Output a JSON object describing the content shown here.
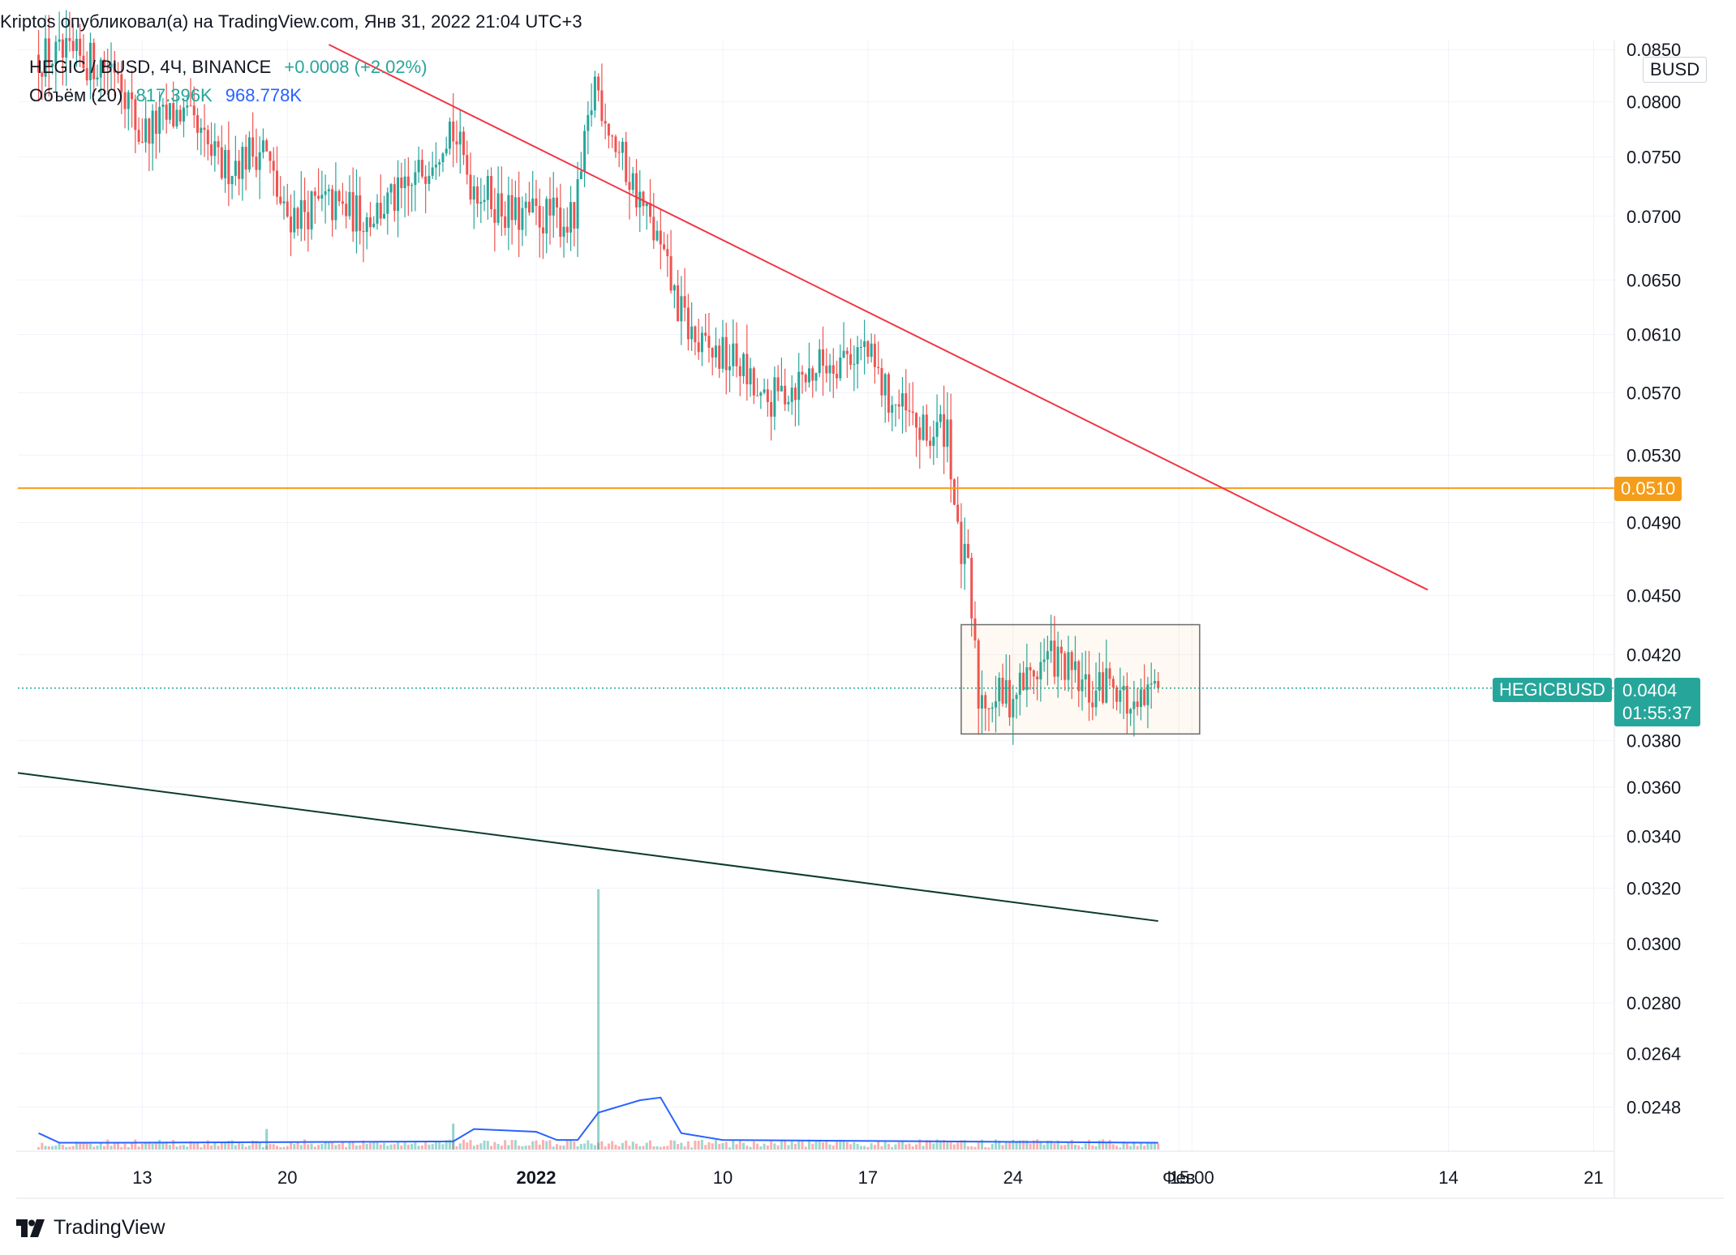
{
  "header": {
    "publish_line": "Kriptos опубликовал(а) на TradingView.com, Янв 31, 2022 21:04 UTC+3"
  },
  "legend": {
    "symbol_line": "HEGIC / BUSD, 4Ч, BINANCE",
    "change": "+0.0008 (+2.02%)",
    "volume_label": "Объём (20)",
    "volume_value": "817.396K",
    "volume_ma": "968.778K"
  },
  "currency_badge": "BUSD",
  "price_axis": {
    "ticks": [
      "0.0850",
      "0.0800",
      "0.0750",
      "0.0700",
      "0.0650",
      "0.0610",
      "0.0570",
      "0.0530",
      "0.0490",
      "0.0450",
      "0.0420",
      "0.0380",
      "0.0360",
      "0.0340",
      "0.0320",
      "0.0300",
      "0.0280",
      "0.0264",
      "0.0248"
    ]
  },
  "time_axis": {
    "ticks": [
      {
        "label": "13",
        "bold": false
      },
      {
        "label": "20",
        "bold": false
      },
      {
        "label": "2022",
        "bold": true
      },
      {
        "label": "10",
        "bold": false
      },
      {
        "label": "17",
        "bold": false
      },
      {
        "label": "24",
        "bold": false
      },
      {
        "label": "Фев",
        "bold": false
      },
      {
        "label": "15:00",
        "bold": false
      },
      {
        "label": "14",
        "bold": false
      },
      {
        "label": "21",
        "bold": false
      }
    ]
  },
  "horizontal_level": {
    "price": 0.051,
    "label": "0.0510",
    "color": "#f59d1a"
  },
  "last_price": {
    "symbol": "HEGICBUSD",
    "price": "0.0404",
    "countdown": "01:55:37",
    "color": "#26a69a"
  },
  "colors": {
    "up": "#26a69a",
    "down": "#ef5350",
    "volume_ma": "#2962ff",
    "trendline_red": "#f23645",
    "trendline_green": "#0b3b2e",
    "grid": "#f0f3fa"
  },
  "branding": {
    "logo_text": "TradingView"
  },
  "chart_data": {
    "type": "candlestick",
    "interval": "4h",
    "symbol": "HEGIC / BUSD",
    "exchange": "BINANCE",
    "y_scale": "log",
    "ylim": [
      0.0236,
      0.0855
    ],
    "x_range": [
      "2021-12-07",
      "2022-02-22"
    ],
    "price_path": [
      [
        "2021-12-08",
        0.0845
      ],
      [
        "2021-12-12",
        0.0835
      ],
      [
        "2021-12-13",
        0.077
      ],
      [
        "2021-12-15",
        0.079
      ],
      [
        "2021-12-17",
        0.074
      ],
      [
        "2021-12-19",
        0.076
      ],
      [
        "2021-12-20",
        0.07
      ],
      [
        "2021-12-22",
        0.071
      ],
      [
        "2021-12-24",
        0.07
      ],
      [
        "2021-12-26",
        0.072
      ],
      [
        "2021-12-28",
        0.078
      ],
      [
        "2021-12-29",
        0.073
      ],
      [
        "2021-12-31",
        0.07
      ],
      [
        "2022-01-02",
        0.07
      ],
      [
        "2022-01-03",
        0.0695
      ],
      [
        "2022-01-04",
        0.082
      ],
      [
        "2022-01-05",
        0.076
      ],
      [
        "2022-01-06",
        0.072
      ],
      [
        "2022-01-07",
        0.068
      ],
      [
        "2022-01-08",
        0.063
      ],
      [
        "2022-01-09",
        0.06
      ],
      [
        "2022-01-11",
        0.059
      ],
      [
        "2022-01-12",
        0.056
      ],
      [
        "2022-01-15",
        0.059
      ],
      [
        "2022-01-17",
        0.06
      ],
      [
        "2022-01-18",
        0.057
      ],
      [
        "2022-01-20",
        0.054
      ],
      [
        "2022-01-21",
        0.055
      ],
      [
        "2022-01-21T12:00",
        0.048
      ],
      [
        "2022-01-22",
        0.046
      ],
      [
        "2022-01-22T12:00",
        0.04
      ],
      [
        "2022-01-24",
        0.04
      ],
      [
        "2022-01-26",
        0.042
      ],
      [
        "2022-01-28",
        0.04
      ],
      [
        "2022-01-29",
        0.041
      ],
      [
        "2022-01-30",
        0.039
      ],
      [
        "2022-01-31",
        0.0404
      ]
    ],
    "volume_spikes": [
      [
        "2022-01-04",
        19000000
      ],
      [
        "2021-12-28",
        1900000
      ],
      [
        "2021-12-19",
        1500000
      ]
    ],
    "volume_ma_path": [
      [
        "2021-12-08",
        1200000
      ],
      [
        "2021-12-09",
        500000
      ],
      [
        "2021-12-12",
        500000
      ],
      [
        "2021-12-28",
        600000
      ],
      [
        "2021-12-29",
        1500000
      ],
      [
        "2022-01-01",
        1300000
      ],
      [
        "2022-01-02",
        700000
      ],
      [
        "2022-01-03",
        700000
      ],
      [
        "2022-01-04",
        2700000
      ],
      [
        "2022-01-06",
        3600000
      ],
      [
        "2022-01-07",
        3800000
      ],
      [
        "2022-01-08",
        1200000
      ],
      [
        "2022-01-10",
        700000
      ],
      [
        "2022-01-31",
        500000
      ]
    ],
    "trendlines": [
      {
        "color": "#f23645",
        "from": [
          "2021-12-22",
          0.0855
        ],
        "to": [
          "2022-02-13",
          0.0453
        ]
      },
      {
        "color": "#0b3b2e",
        "from": [
          "2021-12-07",
          0.0366
        ],
        "to": [
          "2022-01-31",
          0.0308
        ]
      }
    ],
    "range_box": {
      "from": "2022-01-21T12:00",
      "to": "2022-02-02",
      "top": 0.0435,
      "bottom": 0.0383
    }
  }
}
